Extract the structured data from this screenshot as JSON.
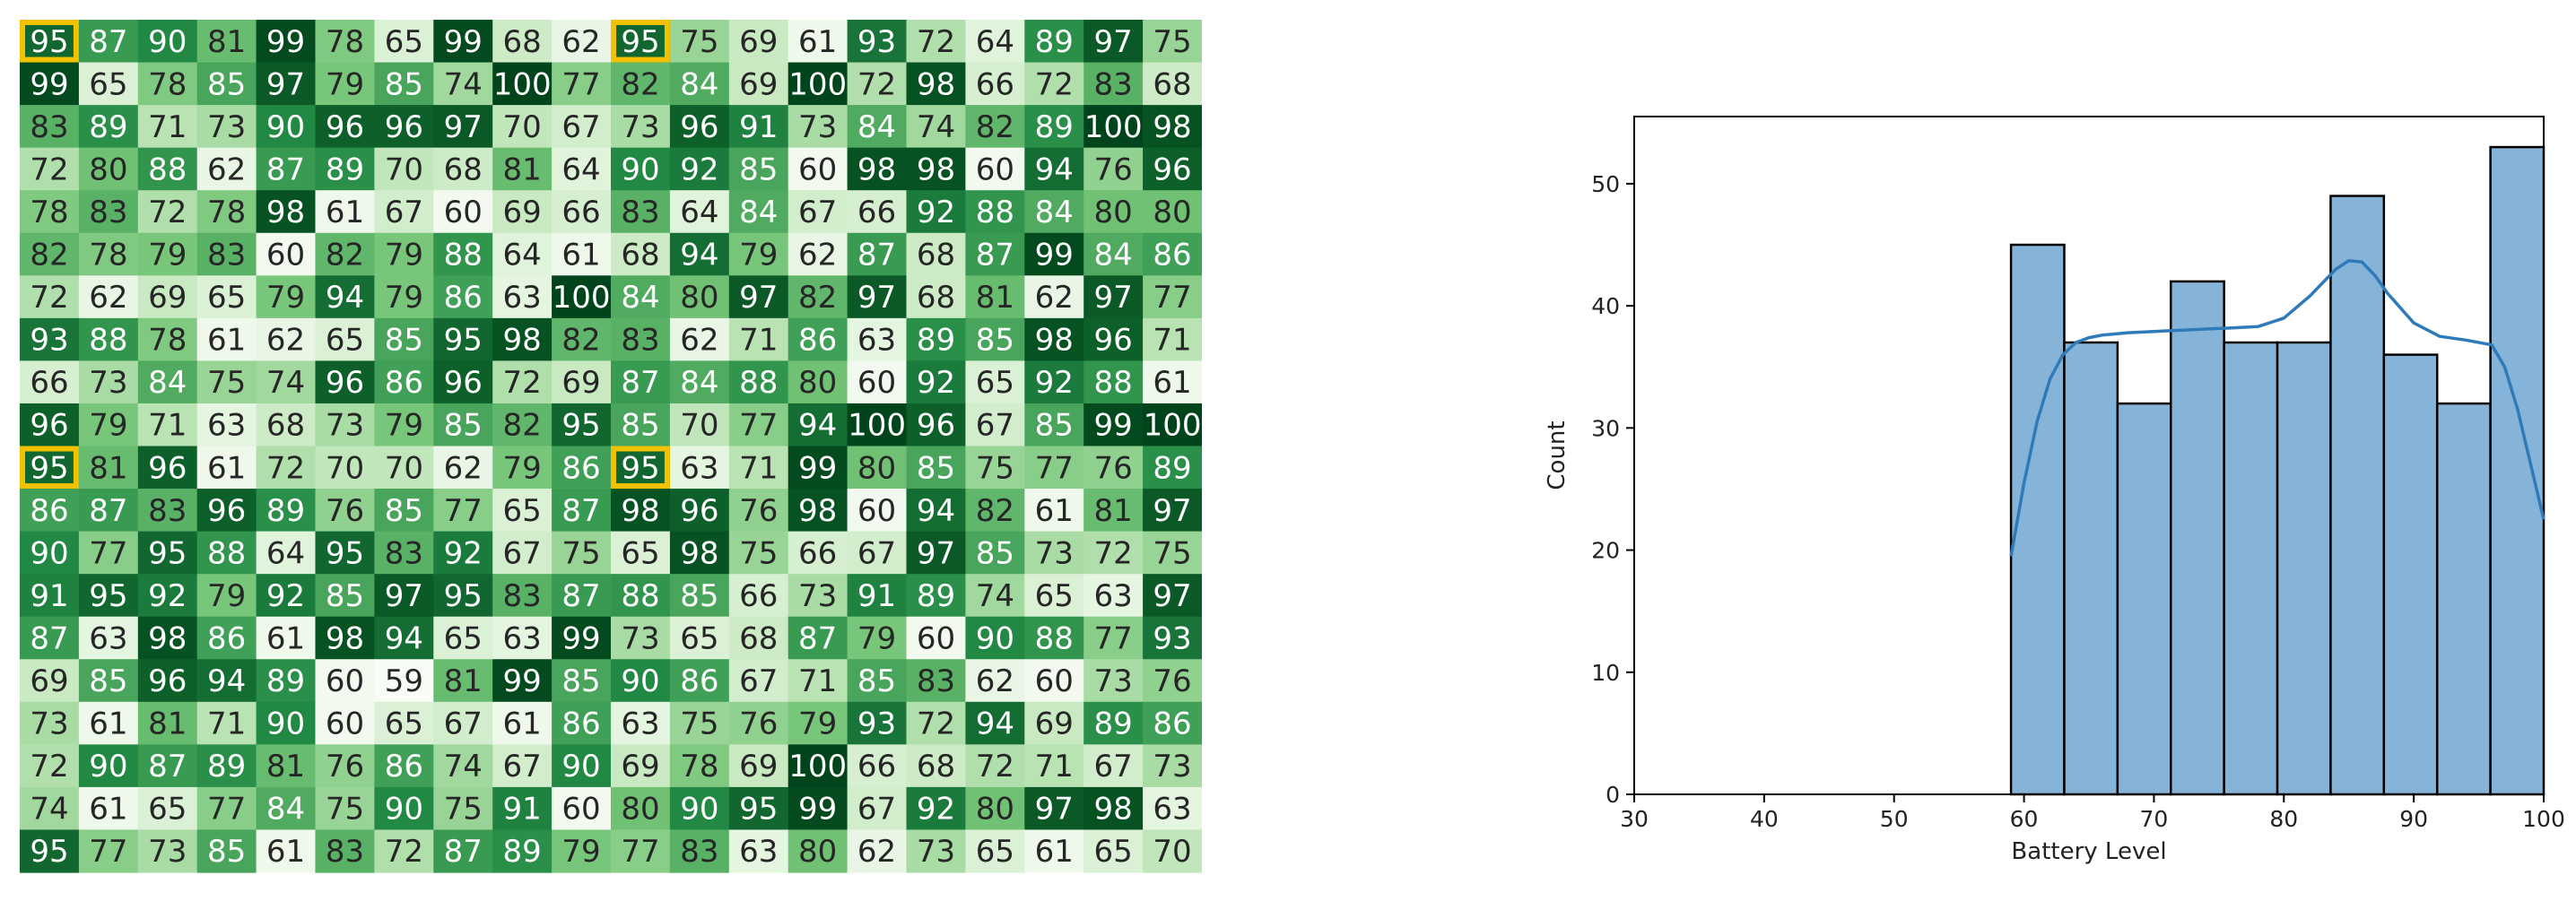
{
  "chart_data": [
    {
      "type": "heatmap",
      "title": "",
      "rows": 20,
      "cols": 20,
      "vmin": 59,
      "vmax": 100,
      "colormap": "Greens",
      "highlight_color": "#f2c200",
      "highlighted_cells": [
        [
          0,
          0
        ],
        [
          0,
          10
        ],
        [
          10,
          0
        ],
        [
          10,
          10
        ]
      ],
      "values": [
        [
          95,
          87,
          90,
          81,
          99,
          78,
          65,
          99,
          68,
          62,
          95,
          75,
          69,
          61,
          93,
          72,
          64,
          89,
          97,
          75
        ],
        [
          99,
          65,
          78,
          85,
          97,
          79,
          85,
          74,
          100,
          77,
          82,
          84,
          69,
          100,
          72,
          98,
          66,
          72,
          83,
          68
        ],
        [
          83,
          89,
          71,
          73,
          90,
          96,
          96,
          97,
          70,
          67,
          73,
          96,
          91,
          73,
          84,
          74,
          82,
          89,
          100,
          98
        ],
        [
          72,
          80,
          88,
          62,
          87,
          89,
          70,
          68,
          81,
          64,
          90,
          92,
          85,
          60,
          98,
          98,
          60,
          94,
          76,
          96
        ],
        [
          78,
          83,
          72,
          78,
          98,
          61,
          67,
          60,
          69,
          66,
          83,
          64,
          84,
          67,
          66,
          92,
          88,
          84,
          80,
          80
        ],
        [
          82,
          78,
          79,
          83,
          60,
          82,
          79,
          88,
          64,
          61,
          68,
          94,
          79,
          62,
          87,
          68,
          87,
          99,
          84,
          86
        ],
        [
          72,
          62,
          69,
          65,
          79,
          94,
          79,
          86,
          63,
          100,
          84,
          80,
          97,
          82,
          97,
          68,
          81,
          62,
          97,
          77
        ],
        [
          93,
          88,
          78,
          61,
          62,
          65,
          85,
          95,
          98,
          82,
          83,
          62,
          71,
          86,
          63,
          89,
          85,
          98,
          96,
          71
        ],
        [
          66,
          73,
          84,
          75,
          74,
          96,
          86,
          96,
          72,
          69,
          87,
          84,
          88,
          80,
          60,
          92,
          65,
          92,
          88,
          61
        ],
        [
          96,
          79,
          71,
          63,
          68,
          73,
          79,
          85,
          82,
          95,
          85,
          70,
          77,
          94,
          100,
          96,
          67,
          85,
          99,
          100
        ],
        [
          95,
          81,
          96,
          61,
          72,
          70,
          70,
          62,
          79,
          86,
          95,
          63,
          71,
          99,
          80,
          85,
          75,
          77,
          76,
          89
        ],
        [
          86,
          87,
          83,
          96,
          89,
          76,
          85,
          77,
          65,
          87,
          98,
          96,
          76,
          98,
          60,
          94,
          82,
          61,
          81,
          97
        ],
        [
          90,
          77,
          95,
          88,
          64,
          95,
          83,
          92,
          67,
          75,
          65,
          98,
          75,
          66,
          67,
          97,
          85,
          73,
          72,
          75
        ],
        [
          91,
          95,
          92,
          79,
          92,
          85,
          97,
          95,
          83,
          87,
          88,
          85,
          66,
          73,
          91,
          89,
          74,
          65,
          63,
          97
        ],
        [
          87,
          63,
          98,
          86,
          61,
          98,
          94,
          65,
          63,
          99,
          73,
          65,
          68,
          87,
          79,
          60,
          90,
          88,
          77,
          93
        ],
        [
          69,
          85,
          96,
          94,
          89,
          60,
          59,
          81,
          99,
          85,
          90,
          86,
          67,
          71,
          85,
          83,
          62,
          60,
          73,
          76
        ],
        [
          73,
          61,
          81,
          71,
          90,
          60,
          65,
          67,
          61,
          86,
          63,
          75,
          76,
          79,
          93,
          72,
          94,
          69,
          89,
          86
        ],
        [
          72,
          90,
          87,
          89,
          81,
          76,
          86,
          74,
          67,
          90,
          69,
          78,
          69,
          100,
          66,
          68,
          72,
          71,
          67,
          73
        ],
        [
          74,
          61,
          65,
          77,
          84,
          75,
          90,
          75,
          91,
          60,
          80,
          90,
          95,
          99,
          67,
          92,
          80,
          97,
          98,
          63
        ],
        [
          95,
          77,
          73,
          85,
          61,
          83,
          72,
          87,
          89,
          79,
          77,
          83,
          63,
          80,
          62,
          73,
          65,
          61,
          65,
          70
        ]
      ]
    },
    {
      "type": "bar",
      "subtype": "histogram",
      "title": "",
      "xlabel": "Battery Level",
      "ylabel": "Count",
      "xlim": [
        30,
        100
      ],
      "ylim": [
        0,
        55.5
      ],
      "xticks": [
        30,
        40,
        50,
        60,
        70,
        80,
        90,
        100
      ],
      "yticks": [
        0,
        10,
        20,
        30,
        40,
        50
      ],
      "bar_color": "#86b4d8",
      "edge_color": "#000000",
      "kde_color": "#2f7ab8",
      "bins": [
        {
          "x0": 59.0,
          "x1": 63.1,
          "count": 45
        },
        {
          "x0": 63.1,
          "x1": 67.2,
          "count": 37
        },
        {
          "x0": 67.2,
          "x1": 71.3,
          "count": 32
        },
        {
          "x0": 71.3,
          "x1": 75.4,
          "count": 42
        },
        {
          "x0": 75.4,
          "x1": 79.5,
          "count": 37
        },
        {
          "x0": 79.5,
          "x1": 83.6,
          "count": 37
        },
        {
          "x0": 83.6,
          "x1": 87.7,
          "count": 49
        },
        {
          "x0": 87.7,
          "x1": 91.8,
          "count": 36
        },
        {
          "x0": 91.8,
          "x1": 95.9,
          "count": 32
        },
        {
          "x0": 95.9,
          "x1": 100.0,
          "count": 53
        }
      ],
      "kde": {
        "x": [
          59,
          60,
          61,
          62,
          63,
          64,
          65,
          66,
          67,
          68,
          70,
          72,
          74,
          76,
          78,
          80,
          82,
          84,
          85,
          86,
          87,
          88,
          90,
          92,
          94,
          96,
          97,
          98,
          99,
          100
        ],
        "y": [
          19.5,
          25.5,
          30.5,
          34,
          36,
          37,
          37.4,
          37.6,
          37.7,
          37.8,
          37.9,
          38,
          38.1,
          38.2,
          38.3,
          39,
          40.8,
          43,
          43.7,
          43.6,
          42.5,
          41,
          38.6,
          37.5,
          37.2,
          36.8,
          35,
          31.5,
          27,
          22.5
        ]
      }
    }
  ]
}
